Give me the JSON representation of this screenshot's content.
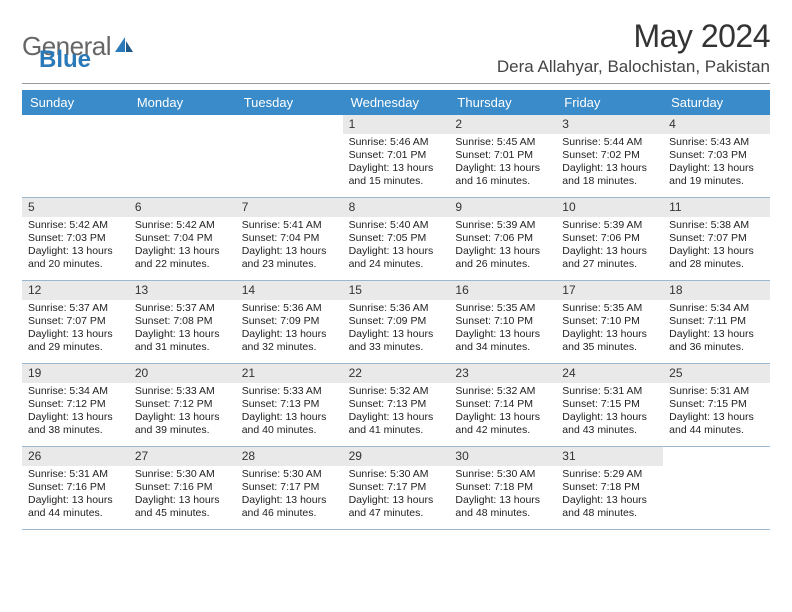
{
  "logo": {
    "part1": "General",
    "part2": "Blue"
  },
  "title": "May 2024",
  "location": "Dera Allahyar, Balochistan, Pakistan",
  "colors": {
    "header_bg": "#3a8bc9",
    "daynum_bg": "#e9e9e9",
    "rule": "#9cb8ce",
    "logo_blue": "#2a7ab9"
  },
  "dow": [
    "Sunday",
    "Monday",
    "Tuesday",
    "Wednesday",
    "Thursday",
    "Friday",
    "Saturday"
  ],
  "weeks": [
    [
      null,
      null,
      null,
      {
        "n": "1",
        "sr": "Sunrise: 5:46 AM",
        "ss": "Sunset: 7:01 PM",
        "d1": "Daylight: 13 hours",
        "d2": "and 15 minutes."
      },
      {
        "n": "2",
        "sr": "Sunrise: 5:45 AM",
        "ss": "Sunset: 7:01 PM",
        "d1": "Daylight: 13 hours",
        "d2": "and 16 minutes."
      },
      {
        "n": "3",
        "sr": "Sunrise: 5:44 AM",
        "ss": "Sunset: 7:02 PM",
        "d1": "Daylight: 13 hours",
        "d2": "and 18 minutes."
      },
      {
        "n": "4",
        "sr": "Sunrise: 5:43 AM",
        "ss": "Sunset: 7:03 PM",
        "d1": "Daylight: 13 hours",
        "d2": "and 19 minutes."
      }
    ],
    [
      {
        "n": "5",
        "sr": "Sunrise: 5:42 AM",
        "ss": "Sunset: 7:03 PM",
        "d1": "Daylight: 13 hours",
        "d2": "and 20 minutes."
      },
      {
        "n": "6",
        "sr": "Sunrise: 5:42 AM",
        "ss": "Sunset: 7:04 PM",
        "d1": "Daylight: 13 hours",
        "d2": "and 22 minutes."
      },
      {
        "n": "7",
        "sr": "Sunrise: 5:41 AM",
        "ss": "Sunset: 7:04 PM",
        "d1": "Daylight: 13 hours",
        "d2": "and 23 minutes."
      },
      {
        "n": "8",
        "sr": "Sunrise: 5:40 AM",
        "ss": "Sunset: 7:05 PM",
        "d1": "Daylight: 13 hours",
        "d2": "and 24 minutes."
      },
      {
        "n": "9",
        "sr": "Sunrise: 5:39 AM",
        "ss": "Sunset: 7:06 PM",
        "d1": "Daylight: 13 hours",
        "d2": "and 26 minutes."
      },
      {
        "n": "10",
        "sr": "Sunrise: 5:39 AM",
        "ss": "Sunset: 7:06 PM",
        "d1": "Daylight: 13 hours",
        "d2": "and 27 minutes."
      },
      {
        "n": "11",
        "sr": "Sunrise: 5:38 AM",
        "ss": "Sunset: 7:07 PM",
        "d1": "Daylight: 13 hours",
        "d2": "and 28 minutes."
      }
    ],
    [
      {
        "n": "12",
        "sr": "Sunrise: 5:37 AM",
        "ss": "Sunset: 7:07 PM",
        "d1": "Daylight: 13 hours",
        "d2": "and 29 minutes."
      },
      {
        "n": "13",
        "sr": "Sunrise: 5:37 AM",
        "ss": "Sunset: 7:08 PM",
        "d1": "Daylight: 13 hours",
        "d2": "and 31 minutes."
      },
      {
        "n": "14",
        "sr": "Sunrise: 5:36 AM",
        "ss": "Sunset: 7:09 PM",
        "d1": "Daylight: 13 hours",
        "d2": "and 32 minutes."
      },
      {
        "n": "15",
        "sr": "Sunrise: 5:36 AM",
        "ss": "Sunset: 7:09 PM",
        "d1": "Daylight: 13 hours",
        "d2": "and 33 minutes."
      },
      {
        "n": "16",
        "sr": "Sunrise: 5:35 AM",
        "ss": "Sunset: 7:10 PM",
        "d1": "Daylight: 13 hours",
        "d2": "and 34 minutes."
      },
      {
        "n": "17",
        "sr": "Sunrise: 5:35 AM",
        "ss": "Sunset: 7:10 PM",
        "d1": "Daylight: 13 hours",
        "d2": "and 35 minutes."
      },
      {
        "n": "18",
        "sr": "Sunrise: 5:34 AM",
        "ss": "Sunset: 7:11 PM",
        "d1": "Daylight: 13 hours",
        "d2": "and 36 minutes."
      }
    ],
    [
      {
        "n": "19",
        "sr": "Sunrise: 5:34 AM",
        "ss": "Sunset: 7:12 PM",
        "d1": "Daylight: 13 hours",
        "d2": "and 38 minutes."
      },
      {
        "n": "20",
        "sr": "Sunrise: 5:33 AM",
        "ss": "Sunset: 7:12 PM",
        "d1": "Daylight: 13 hours",
        "d2": "and 39 minutes."
      },
      {
        "n": "21",
        "sr": "Sunrise: 5:33 AM",
        "ss": "Sunset: 7:13 PM",
        "d1": "Daylight: 13 hours",
        "d2": "and 40 minutes."
      },
      {
        "n": "22",
        "sr": "Sunrise: 5:32 AM",
        "ss": "Sunset: 7:13 PM",
        "d1": "Daylight: 13 hours",
        "d2": "and 41 minutes."
      },
      {
        "n": "23",
        "sr": "Sunrise: 5:32 AM",
        "ss": "Sunset: 7:14 PM",
        "d1": "Daylight: 13 hours",
        "d2": "and 42 minutes."
      },
      {
        "n": "24",
        "sr": "Sunrise: 5:31 AM",
        "ss": "Sunset: 7:15 PM",
        "d1": "Daylight: 13 hours",
        "d2": "and 43 minutes."
      },
      {
        "n": "25",
        "sr": "Sunrise: 5:31 AM",
        "ss": "Sunset: 7:15 PM",
        "d1": "Daylight: 13 hours",
        "d2": "and 44 minutes."
      }
    ],
    [
      {
        "n": "26",
        "sr": "Sunrise: 5:31 AM",
        "ss": "Sunset: 7:16 PM",
        "d1": "Daylight: 13 hours",
        "d2": "and 44 minutes."
      },
      {
        "n": "27",
        "sr": "Sunrise: 5:30 AM",
        "ss": "Sunset: 7:16 PM",
        "d1": "Daylight: 13 hours",
        "d2": "and 45 minutes."
      },
      {
        "n": "28",
        "sr": "Sunrise: 5:30 AM",
        "ss": "Sunset: 7:17 PM",
        "d1": "Daylight: 13 hours",
        "d2": "and 46 minutes."
      },
      {
        "n": "29",
        "sr": "Sunrise: 5:30 AM",
        "ss": "Sunset: 7:17 PM",
        "d1": "Daylight: 13 hours",
        "d2": "and 47 minutes."
      },
      {
        "n": "30",
        "sr": "Sunrise: 5:30 AM",
        "ss": "Sunset: 7:18 PM",
        "d1": "Daylight: 13 hours",
        "d2": "and 48 minutes."
      },
      {
        "n": "31",
        "sr": "Sunrise: 5:29 AM",
        "ss": "Sunset: 7:18 PM",
        "d1": "Daylight: 13 hours",
        "d2": "and 48 minutes."
      },
      null
    ]
  ]
}
